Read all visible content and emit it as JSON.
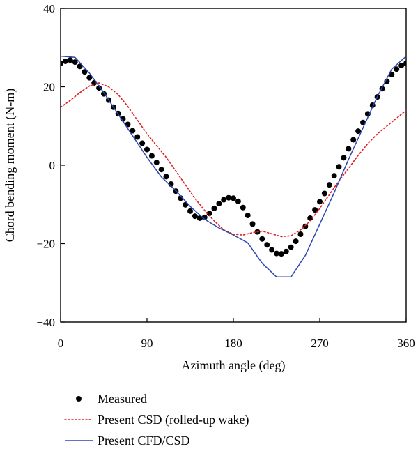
{
  "chart_data": {
    "type": "line",
    "title": "",
    "xlabel": "Azimuth angle (deg)",
    "ylabel": "Chord bending moment (N-m)",
    "xlim": [
      0,
      360
    ],
    "ylim": [
      -40,
      40
    ],
    "xticks": [
      0,
      90,
      180,
      270,
      360
    ],
    "yticks": [
      -40,
      -20,
      0,
      20,
      40
    ],
    "xtick_labels": [
      "0",
      "90",
      "180",
      "270",
      "360"
    ],
    "ytick_labels": [
      "−40",
      "−20",
      "0",
      "20",
      "40"
    ],
    "grid": false,
    "legend_position": "bottom",
    "series": [
      {
        "name": "Measured",
        "style": "markers",
        "color": "#000000",
        "x": [
          0,
          5,
          10,
          15,
          20,
          25,
          30,
          35,
          40,
          45,
          50,
          55,
          60,
          65,
          70,
          75,
          80,
          85,
          90,
          95,
          100,
          105,
          110,
          115,
          120,
          125,
          130,
          135,
          140,
          145,
          150,
          155,
          160,
          165,
          170,
          175,
          180,
          185,
          190,
          195,
          200,
          205,
          210,
          215,
          220,
          225,
          230,
          235,
          240,
          245,
          250,
          255,
          260,
          265,
          270,
          275,
          280,
          285,
          290,
          295,
          300,
          305,
          310,
          315,
          320,
          325,
          330,
          335,
          340,
          345,
          350,
          355,
          360
        ],
        "y": [
          26,
          26.5,
          26.8,
          26.3,
          25.2,
          23.8,
          22.3,
          21,
          19.7,
          18.2,
          16.6,
          14.8,
          13.2,
          11.8,
          10.4,
          8.8,
          7.2,
          5.6,
          4,
          2.4,
          0.7,
          -1.1,
          -2.9,
          -4.8,
          -6.6,
          -8.4,
          -10.1,
          -11.7,
          -13,
          -13.5,
          -13.3,
          -12.3,
          -11,
          -9.8,
          -8.8,
          -8.3,
          -8.4,
          -9.2,
          -10.8,
          -12.8,
          -15,
          -17,
          -18.8,
          -20.3,
          -21.6,
          -22.5,
          -22.6,
          -22,
          -20.9,
          -19.4,
          -17.6,
          -15.6,
          -13.5,
          -11.4,
          -9.3,
          -7.2,
          -5,
          -2.7,
          -0.4,
          1.9,
          4.2,
          6.5,
          8.7,
          10.9,
          13.1,
          15.3,
          17.4,
          19.5,
          21.4,
          23.1,
          24.5,
          25.4,
          26
        ]
      },
      {
        "name": "Present CSD (rolled-up wake)",
        "style": "dotted",
        "color": "#e02020",
        "x": [
          0,
          10,
          20,
          30,
          40,
          50,
          60,
          70,
          80,
          90,
          100,
          110,
          120,
          130,
          140,
          150,
          160,
          170,
          180,
          190,
          200,
          210,
          220,
          230,
          240,
          250,
          260,
          270,
          280,
          290,
          300,
          310,
          320,
          330,
          340,
          350,
          360
        ],
        "y": [
          14.8,
          16.5,
          18.5,
          20.2,
          21,
          20,
          18,
          15,
          11.5,
          8,
          5,
          2,
          -1.5,
          -5,
          -8.5,
          -11.5,
          -14.2,
          -16.5,
          -17.6,
          -17.8,
          -17.2,
          -16.8,
          -17.5,
          -18.2,
          -18,
          -16.5,
          -14.2,
          -11,
          -7.5,
          -4,
          -0.8,
          2.5,
          5.5,
          8,
          10,
          12,
          14
        ]
      },
      {
        "name": "Present CFD/CSD",
        "style": "solid",
        "color": "#2b47b0",
        "x": [
          0,
          15,
          30,
          45,
          60,
          75,
          90,
          105,
          120,
          135,
          150,
          165,
          180,
          195,
          210,
          225,
          240,
          255,
          270,
          285,
          300,
          315,
          330,
          345,
          360
        ],
        "y": [
          27.8,
          27.5,
          23.5,
          18.5,
          13,
          7.5,
          2,
          -3,
          -6.5,
          -10.5,
          -13.8,
          -16,
          -17.8,
          -19.8,
          -25,
          -28.5,
          -28.5,
          -23,
          -15,
          -7,
          1.5,
          9.5,
          17.5,
          24.5,
          27.8
        ]
      }
    ]
  }
}
